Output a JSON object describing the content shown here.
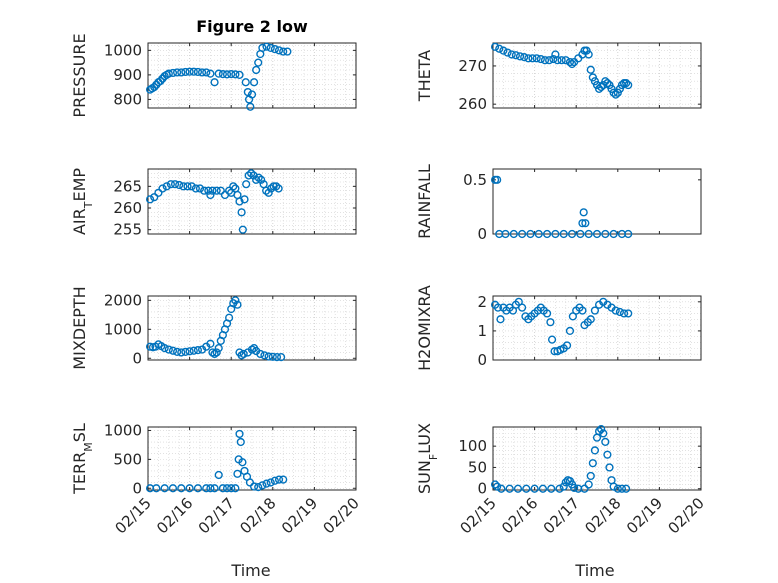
{
  "figure": {
    "title": "Figure 2 low",
    "xlabel": "Time"
  },
  "chart_data": [
    {
      "type": "scatter",
      "ylabel": "PRESSURE",
      "ylim": [
        765,
        1030
      ],
      "yticks": [
        800,
        900,
        1000
      ],
      "xlim": [
        0,
        5
      ],
      "xticks": [
        "02/15",
        "02/16",
        "02/17",
        "02/18",
        "02/19",
        "02/20"
      ],
      "grid": true,
      "color": "#0072BD",
      "points": [
        [
          0.05,
          840
        ],
        [
          0.1,
          845
        ],
        [
          0.15,
          850
        ],
        [
          0.2,
          860
        ],
        [
          0.25,
          870
        ],
        [
          0.3,
          875
        ],
        [
          0.35,
          885
        ],
        [
          0.4,
          895
        ],
        [
          0.45,
          900
        ],
        [
          0.5,
          905
        ],
        [
          0.6,
          908
        ],
        [
          0.7,
          910
        ],
        [
          0.8,
          910
        ],
        [
          0.9,
          912
        ],
        [
          1.0,
          913
        ],
        [
          1.1,
          913
        ],
        [
          1.2,
          912
        ],
        [
          1.3,
          910
        ],
        [
          1.4,
          910
        ],
        [
          1.5,
          905
        ],
        [
          1.6,
          870
        ],
        [
          1.7,
          905
        ],
        [
          1.8,
          903
        ],
        [
          1.9,
          902
        ],
        [
          2.0,
          903
        ],
        [
          2.1,
          902
        ],
        [
          2.2,
          900
        ],
        [
          2.35,
          870
        ],
        [
          2.4,
          830
        ],
        [
          2.43,
          800
        ],
        [
          2.46,
          770
        ],
        [
          2.5,
          820
        ],
        [
          2.55,
          870
        ],
        [
          2.6,
          920
        ],
        [
          2.65,
          950
        ],
        [
          2.7,
          985
        ],
        [
          2.75,
          1010
        ],
        [
          2.85,
          1015
        ],
        [
          2.95,
          1010
        ],
        [
          3.05,
          1005
        ],
        [
          3.15,
          1000
        ],
        [
          3.25,
          995
        ],
        [
          3.35,
          995
        ]
      ]
    },
    {
      "type": "scatter",
      "ylabel": "THETA",
      "ylim": [
        259,
        276
      ],
      "yticks": [
        260,
        270
      ],
      "xlim": [
        0,
        5
      ],
      "xticks": [
        "02/15",
        "02/16",
        "02/17",
        "02/18",
        "02/19",
        "02/20"
      ],
      "grid": true,
      "color": "#0072BD",
      "points": [
        [
          0.05,
          275
        ],
        [
          0.15,
          274.5
        ],
        [
          0.25,
          274
        ],
        [
          0.35,
          273.5
        ],
        [
          0.45,
          273
        ],
        [
          0.55,
          272.8
        ],
        [
          0.65,
          272.5
        ],
        [
          0.75,
          272.3
        ],
        [
          0.85,
          272
        ],
        [
          0.95,
          272
        ],
        [
          1.05,
          272
        ],
        [
          1.15,
          271.8
        ],
        [
          1.25,
          271.5
        ],
        [
          1.35,
          271.5
        ],
        [
          1.45,
          271.8
        ],
        [
          1.5,
          273
        ],
        [
          1.55,
          271.5
        ],
        [
          1.65,
          271.5
        ],
        [
          1.75,
          271.5
        ],
        [
          1.85,
          271
        ],
        [
          1.9,
          270.5
        ],
        [
          1.95,
          271
        ],
        [
          2.05,
          272
        ],
        [
          2.15,
          273
        ],
        [
          2.2,
          274
        ],
        [
          2.25,
          274
        ],
        [
          2.3,
          273
        ],
        [
          2.35,
          269
        ],
        [
          2.4,
          267
        ],
        [
          2.45,
          266
        ],
        [
          2.5,
          265
        ],
        [
          2.55,
          264
        ],
        [
          2.6,
          264.5
        ],
        [
          2.65,
          265
        ],
        [
          2.7,
          266
        ],
        [
          2.75,
          265.5
        ],
        [
          2.8,
          265
        ],
        [
          2.85,
          264
        ],
        [
          2.9,
          263
        ],
        [
          2.95,
          262.5
        ],
        [
          3.0,
          263
        ],
        [
          3.05,
          264
        ],
        [
          3.1,
          265
        ],
        [
          3.15,
          265.5
        ],
        [
          3.2,
          265.5
        ],
        [
          3.25,
          265
        ]
      ]
    },
    {
      "type": "scatter",
      "ylabel": "AIR_TEMP",
      "ylim": [
        254,
        269
      ],
      "yticks": [
        255,
        260,
        265
      ],
      "xlim": [
        0,
        5
      ],
      "xticks": [
        "02/15",
        "02/16",
        "02/17",
        "02/18",
        "02/19",
        "02/20"
      ],
      "grid": true,
      "color": "#0072BD",
      "points": [
        [
          0.05,
          262
        ],
        [
          0.15,
          262.5
        ],
        [
          0.25,
          263.5
        ],
        [
          0.35,
          264.5
        ],
        [
          0.45,
          265
        ],
        [
          0.55,
          265.5
        ],
        [
          0.65,
          265.5
        ],
        [
          0.75,
          265.3
        ],
        [
          0.85,
          265
        ],
        [
          0.95,
          265
        ],
        [
          1.05,
          265
        ],
        [
          1.15,
          264.5
        ],
        [
          1.25,
          264.5
        ],
        [
          1.35,
          264
        ],
        [
          1.45,
          264
        ],
        [
          1.5,
          263
        ],
        [
          1.55,
          264
        ],
        [
          1.65,
          264
        ],
        [
          1.75,
          264
        ],
        [
          1.85,
          263
        ],
        [
          1.95,
          264
        ],
        [
          2.0,
          263.5
        ],
        [
          2.05,
          265
        ],
        [
          2.1,
          264.5
        ],
        [
          2.15,
          263
        ],
        [
          2.2,
          261.5
        ],
        [
          2.25,
          259
        ],
        [
          2.28,
          255
        ],
        [
          2.32,
          262
        ],
        [
          2.36,
          265.5
        ],
        [
          2.42,
          267.5
        ],
        [
          2.48,
          268
        ],
        [
          2.54,
          267.5
        ],
        [
          2.6,
          266.5
        ],
        [
          2.66,
          267
        ],
        [
          2.72,
          266.5
        ],
        [
          2.78,
          265.5
        ],
        [
          2.84,
          264
        ],
        [
          2.9,
          263.5
        ],
        [
          2.96,
          264.5
        ],
        [
          3.02,
          265
        ],
        [
          3.08,
          265
        ],
        [
          3.14,
          264.5
        ]
      ]
    },
    {
      "type": "scatter",
      "ylabel": "RAINFALL",
      "ylim": [
        0,
        0.6
      ],
      "yticks": [
        0,
        0.5
      ],
      "xlim": [
        0,
        5
      ],
      "xticks": [
        "02/15",
        "02/16",
        "02/17",
        "02/18",
        "02/19",
        "02/20"
      ],
      "grid": false,
      "color": "#0072BD",
      "points": [
        [
          0.05,
          0.5
        ],
        [
          0.1,
          0.5
        ],
        [
          0.15,
          0
        ],
        [
          0.3,
          0
        ],
        [
          0.5,
          0
        ],
        [
          0.7,
          0
        ],
        [
          0.9,
          0
        ],
        [
          1.1,
          0
        ],
        [
          1.3,
          0
        ],
        [
          1.5,
          0
        ],
        [
          1.7,
          0
        ],
        [
          1.9,
          0
        ],
        [
          2.1,
          0
        ],
        [
          2.15,
          0.1
        ],
        [
          2.18,
          0.2
        ],
        [
          2.22,
          0.1
        ],
        [
          2.3,
          0
        ],
        [
          2.5,
          0
        ],
        [
          2.7,
          0
        ],
        [
          2.9,
          0
        ],
        [
          3.1,
          0
        ],
        [
          3.25,
          0
        ]
      ]
    },
    {
      "type": "scatter",
      "ylabel": "MIXDEPTH",
      "ylim": [
        -60,
        2150
      ],
      "yticks": [
        0,
        1000,
        2000
      ],
      "xlim": [
        0,
        5
      ],
      "xticks": [
        "02/15",
        "02/16",
        "02/17",
        "02/18",
        "02/19",
        "02/20"
      ],
      "grid": true,
      "color": "#0072BD",
      "points": [
        [
          0.05,
          400
        ],
        [
          0.12,
          380
        ],
        [
          0.18,
          400
        ],
        [
          0.25,
          480
        ],
        [
          0.32,
          420
        ],
        [
          0.4,
          350
        ],
        [
          0.5,
          300
        ],
        [
          0.6,
          260
        ],
        [
          0.7,
          220
        ],
        [
          0.8,
          200
        ],
        [
          0.9,
          220
        ],
        [
          1.0,
          240
        ],
        [
          1.1,
          260
        ],
        [
          1.2,
          280
        ],
        [
          1.3,
          300
        ],
        [
          1.4,
          400
        ],
        [
          1.5,
          500
        ],
        [
          1.55,
          200
        ],
        [
          1.6,
          150
        ],
        [
          1.65,
          200
        ],
        [
          1.7,
          350
        ],
        [
          1.75,
          600
        ],
        [
          1.8,
          800
        ],
        [
          1.85,
          1000
        ],
        [
          1.9,
          1200
        ],
        [
          1.95,
          1400
        ],
        [
          2.0,
          1700
        ],
        [
          2.05,
          1900
        ],
        [
          2.1,
          2000
        ],
        [
          2.15,
          1850
        ],
        [
          2.2,
          200
        ],
        [
          2.25,
          100
        ],
        [
          2.3,
          150
        ],
        [
          2.4,
          200
        ],
        [
          2.5,
          300
        ],
        [
          2.55,
          350
        ],
        [
          2.6,
          250
        ],
        [
          2.7,
          150
        ],
        [
          2.8,
          100
        ],
        [
          2.9,
          60
        ],
        [
          3.0,
          50
        ],
        [
          3.1,
          40
        ],
        [
          3.2,
          40
        ]
      ]
    },
    {
      "type": "scatter",
      "ylabel": "H2OMIXRA",
      "ylim": [
        0,
        2.2
      ],
      "yticks": [
        0,
        1,
        2
      ],
      "xlim": [
        0,
        5
      ],
      "xticks": [
        "02/15",
        "02/16",
        "02/17",
        "02/18",
        "02/19",
        "02/20"
      ],
      "grid": true,
      "color": "#0072BD",
      "points": [
        [
          0.05,
          1.9
        ],
        [
          0.12,
          1.8
        ],
        [
          0.18,
          1.4
        ],
        [
          0.25,
          1.8
        ],
        [
          0.32,
          1.7
        ],
        [
          0.4,
          1.8
        ],
        [
          0.48,
          1.7
        ],
        [
          0.55,
          1.9
        ],
        [
          0.62,
          2.0
        ],
        [
          0.7,
          1.8
        ],
        [
          0.78,
          1.5
        ],
        [
          0.85,
          1.4
        ],
        [
          0.92,
          1.5
        ],
        [
          1.0,
          1.6
        ],
        [
          1.08,
          1.7
        ],
        [
          1.15,
          1.8
        ],
        [
          1.22,
          1.7
        ],
        [
          1.3,
          1.6
        ],
        [
          1.38,
          1.3
        ],
        [
          1.42,
          0.7
        ],
        [
          1.48,
          0.3
        ],
        [
          1.55,
          0.3
        ],
        [
          1.62,
          0.35
        ],
        [
          1.7,
          0.4
        ],
        [
          1.78,
          0.5
        ],
        [
          1.85,
          1.0
        ],
        [
          1.92,
          1.5
        ],
        [
          2.0,
          1.7
        ],
        [
          2.08,
          1.8
        ],
        [
          2.15,
          1.7
        ],
        [
          2.2,
          1.2
        ],
        [
          2.28,
          1.3
        ],
        [
          2.35,
          1.4
        ],
        [
          2.45,
          1.7
        ],
        [
          2.55,
          1.9
        ],
        [
          2.65,
          2.0
        ],
        [
          2.75,
          1.9
        ],
        [
          2.85,
          1.8
        ],
        [
          2.95,
          1.7
        ],
        [
          3.05,
          1.65
        ],
        [
          3.15,
          1.6
        ],
        [
          3.25,
          1.6
        ]
      ]
    },
    {
      "type": "scatter",
      "ylabel": "TERR_MSL",
      "ylim": [
        -30,
        1060
      ],
      "yticks": [
        0,
        500,
        1000
      ],
      "xlim": [
        0,
        5
      ],
      "xticks": [
        "02/15",
        "02/16",
        "02/17",
        "02/18",
        "02/19",
        "02/20"
      ],
      "grid": true,
      "color": "#0072BD",
      "points": [
        [
          0.05,
          0
        ],
        [
          0.2,
          0
        ],
        [
          0.4,
          0
        ],
        [
          0.6,
          0
        ],
        [
          0.8,
          0
        ],
        [
          1.0,
          0
        ],
        [
          1.2,
          0
        ],
        [
          1.4,
          0
        ],
        [
          1.5,
          0
        ],
        [
          1.6,
          0
        ],
        [
          1.7,
          230
        ],
        [
          1.8,
          0
        ],
        [
          1.9,
          0
        ],
        [
          2.0,
          0
        ],
        [
          2.1,
          0
        ],
        [
          2.15,
          250
        ],
        [
          2.18,
          500
        ],
        [
          2.2,
          940
        ],
        [
          2.23,
          800
        ],
        [
          2.27,
          450
        ],
        [
          2.32,
          300
        ],
        [
          2.38,
          200
        ],
        [
          2.45,
          100
        ],
        [
          2.55,
          30
        ],
        [
          2.65,
          20
        ],
        [
          2.75,
          50
        ],
        [
          2.85,
          80
        ],
        [
          2.95,
          100
        ],
        [
          3.05,
          130
        ],
        [
          3.15,
          150
        ],
        [
          3.25,
          150
        ]
      ]
    },
    {
      "type": "scatter",
      "ylabel": "SUN_FLUX",
      "ylim": [
        -3,
        145
      ],
      "yticks": [
        0,
        50,
        100
      ],
      "xlim": [
        0,
        5
      ],
      "xticks": [
        "02/15",
        "02/16",
        "02/17",
        "02/18",
        "02/19",
        "02/20"
      ],
      "grid": true,
      "color": "#0072BD",
      "points": [
        [
          0.05,
          10
        ],
        [
          0.1,
          5
        ],
        [
          0.2,
          0
        ],
        [
          0.4,
          0
        ],
        [
          0.6,
          0
        ],
        [
          0.8,
          0
        ],
        [
          1.0,
          0
        ],
        [
          1.2,
          0
        ],
        [
          1.4,
          0
        ],
        [
          1.6,
          0
        ],
        [
          1.7,
          5
        ],
        [
          1.75,
          15
        ],
        [
          1.8,
          20
        ],
        [
          1.85,
          18
        ],
        [
          1.9,
          10
        ],
        [
          1.95,
          2
        ],
        [
          2.05,
          0
        ],
        [
          2.2,
          0
        ],
        [
          2.3,
          10
        ],
        [
          2.35,
          30
        ],
        [
          2.4,
          60
        ],
        [
          2.45,
          90
        ],
        [
          2.5,
          120
        ],
        [
          2.55,
          135
        ],
        [
          2.6,
          140
        ],
        [
          2.65,
          130
        ],
        [
          2.7,
          110
        ],
        [
          2.75,
          80
        ],
        [
          2.8,
          50
        ],
        [
          2.85,
          20
        ],
        [
          2.9,
          5
        ],
        [
          3.0,
          0
        ],
        [
          3.1,
          0
        ],
        [
          3.2,
          0
        ]
      ]
    }
  ]
}
